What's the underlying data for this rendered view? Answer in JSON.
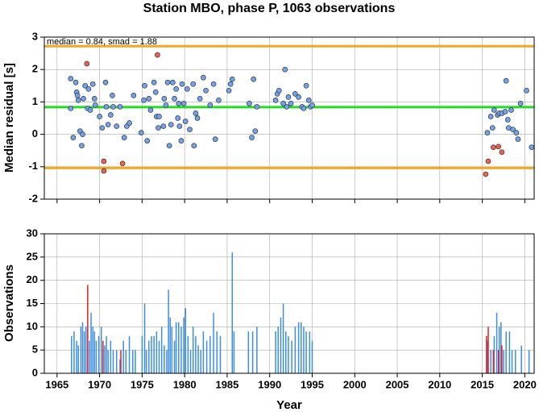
{
  "chart_data": [
    {
      "type": "scatter",
      "title": "Station MBO, phase P, 1063 observations",
      "ylabel": "Median residual [s]",
      "annotation": "median = 0.84, smad = 1.88",
      "xlim": [
        1963.5,
        2021.1
      ],
      "ylim": [
        -2,
        3
      ],
      "yticks": [
        -2,
        -1,
        0,
        1,
        2,
        3
      ],
      "grid": true,
      "hlines": [
        {
          "value": 2.72,
          "color": "#f5a623"
        },
        {
          "value": 0.84,
          "color": "#22dd22"
        },
        {
          "value": -1.04,
          "color": "#f5a623"
        }
      ],
      "series": [
        {
          "color": "#6fa3ef",
          "x": [
            1966.6,
            1966.6,
            1966.9,
            1967.2,
            1967.3,
            1967.4,
            1967.5,
            1967.7,
            1967.9,
            1968.0,
            1968.1,
            1968.3,
            1968.6,
            1968.7,
            1968.9,
            1969.2,
            1969.4,
            1969.5,
            1970.0,
            1970.3,
            1970.7,
            1970.8,
            1971.0,
            1971.3,
            1971.5,
            1971.6,
            1972.0,
            1972.4,
            1972.9,
            1973.2,
            1973.5,
            1974.0,
            1974.9,
            1975.2,
            1975.3,
            1975.6,
            1975.8,
            1976.0,
            1976.4,
            1976.6,
            1976.7,
            1976.9,
            1977.0,
            1977.5,
            1977.6,
            1977.8,
            1978.0,
            1978.2,
            1978.4,
            1978.6,
            1978.8,
            1979.0,
            1979.2,
            1979.3,
            1979.4,
            1979.6,
            1979.7,
            1979.9,
            1980.1,
            1980.3,
            1980.6,
            1981.0,
            1981.1,
            1981.3,
            1981.5,
            1981.8,
            1982.2,
            1982.5,
            1983.0,
            1983.4,
            1983.6,
            1984.0,
            1985.2,
            1985.4,
            1985.6,
            1987.6,
            1987.9,
            1988.1,
            1988.3,
            1988.5,
            1990.7,
            1990.9,
            1991.1,
            1991.6,
            1991.8,
            1992.0,
            1992.2,
            1992.5,
            1993.0,
            1993.4,
            1993.8,
            1994.0,
            1994.3,
            1994.6,
            1994.8,
            1995.0,
            2015.6,
            2016.0,
            2016.2,
            2016.4,
            2016.8,
            2017.0,
            2017.3,
            2017.7,
            2017.8,
            2018.0,
            2018.1,
            2018.4,
            2018.6,
            2019.0,
            2019.2,
            2019.5,
            2020.2,
            2020.8
          ],
          "values": [
            1.72,
            0.8,
            -0.1,
            1.6,
            1.3,
            1.2,
            1.05,
            0.1,
            -0.35,
            0.0,
            1.1,
            1.5,
            0.8,
            1.4,
            0.75,
            1.55,
            1.1,
            0.9,
            0.55,
            0.2,
            1.6,
            0.85,
            0.3,
            0.6,
            1.2,
            0.85,
            0.25,
            0.85,
            -0.1,
            0.25,
            0.35,
            1.2,
            0.05,
            1.05,
            1.5,
            -0.2,
            1.1,
            0.75,
            1.6,
            1.3,
            0.55,
            0.2,
            0.55,
            0.25,
            1.1,
            0.9,
            1.6,
            -0.35,
            0.3,
            1.6,
            1.1,
            1.4,
            0.5,
            0.95,
            0.25,
            -0.2,
            1.55,
            0.95,
            0.4,
            1.4,
            0.15,
            1.55,
            -0.35,
            0.65,
            0.5,
            1.1,
            1.75,
            1.35,
            0.9,
            1.55,
            -0.15,
            1.05,
            1.35,
            1.55,
            1.7,
            0.95,
            -0.1,
            1.7,
            0.1,
            0.85,
            1.05,
            1.25,
            1.35,
            0.95,
            2.0,
            0.85,
            1.15,
            0.95,
            1.25,
            1.15,
            0.85,
            0.8,
            1.5,
            1.05,
            0.85,
            0.9,
            0.05,
            0.55,
            0.2,
            0.75,
            0.6,
            0.65,
            0.65,
            0.7,
            1.65,
            0.45,
            0.2,
            0.75,
            0.15,
            0.05,
            -0.15,
            0.95,
            1.35,
            -0.4
          ]
        },
        {
          "color": "#f06050",
          "x": [
            1968.5,
            1970.5,
            1970.5,
            1972.7,
            1976.8,
            2015.4,
            2015.7,
            2016.3,
            2016.9,
            2017.3
          ],
          "values": [
            2.18,
            -0.83,
            -1.13,
            -0.9,
            2.45,
            -1.23,
            -0.83,
            -0.4,
            -0.38,
            -0.55
          ]
        }
      ]
    },
    {
      "type": "bar",
      "ylabel": "Observations",
      "xlabel": "Year",
      "xlim": [
        1963.5,
        2021.1
      ],
      "xticks": [
        1965,
        1970,
        1975,
        1980,
        1985,
        1990,
        1995,
        2000,
        2005,
        2010,
        2015,
        2020
      ],
      "ylim": [
        0,
        30
      ],
      "yticks": [
        0,
        5,
        10,
        15,
        20,
        25,
        30
      ],
      "grid": true,
      "series": [
        {
          "color": "#3d8ee0",
          "x": [
            1966.7,
            1967.0,
            1967.3,
            1967.5,
            1967.8,
            1968.0,
            1968.2,
            1968.4,
            1968.8,
            1969.0,
            1969.2,
            1969.4,
            1969.6,
            1969.9,
            1970.2,
            1970.4,
            1970.6,
            1970.8,
            1971.0,
            1971.3,
            1971.6,
            1972.0,
            1972.4,
            1972.8,
            1973.1,
            1973.5,
            1973.9,
            1974.2,
            1975.0,
            1975.3,
            1975.5,
            1975.8,
            1976.1,
            1976.4,
            1976.7,
            1977.0,
            1977.3,
            1977.6,
            1977.9,
            1978.1,
            1978.3,
            1978.5,
            1978.8,
            1979.0,
            1979.3,
            1979.6,
            1979.9,
            1980.1,
            1980.4,
            1980.7,
            1981.0,
            1981.3,
            1981.6,
            1981.9,
            1982.2,
            1982.6,
            1983.0,
            1983.4,
            1983.8,
            1984.2,
            1985.6,
            1985.8,
            1987.5,
            1988.0,
            1988.5,
            1990.7,
            1991.0,
            1991.3,
            1991.6,
            1991.9,
            1992.2,
            1992.6,
            1993.0,
            1993.4,
            1993.7,
            1994.0,
            1994.3,
            1994.7,
            1995.0,
            2015.6,
            2016.0,
            2016.4,
            2016.7,
            2017.0,
            2017.2,
            2017.5,
            2017.8,
            2018.2,
            2018.5,
            2018.9,
            2019.6,
            2020.5
          ],
          "values": [
            8,
            9,
            7,
            6,
            10,
            11,
            9,
            10,
            7,
            13,
            10,
            9,
            7,
            8,
            10,
            5,
            6,
            8,
            5,
            7,
            5,
            5,
            3,
            7,
            5,
            8,
            5,
            5,
            8,
            15,
            5,
            7,
            8,
            8,
            9,
            7,
            10,
            6,
            5,
            18,
            12,
            10,
            7,
            11,
            11,
            10,
            12,
            14,
            8,
            5,
            10,
            8,
            6,
            5,
            9,
            7,
            8,
            13,
            9,
            8,
            26,
            9,
            9,
            9,
            10,
            9,
            10,
            12,
            15,
            9,
            8,
            7,
            10,
            11,
            11,
            10,
            9,
            9,
            7,
            7,
            5,
            8,
            13,
            10,
            11,
            5,
            9,
            9,
            5,
            5,
            6,
            5
          ]
        },
        {
          "color": "#e02020",
          "x": [
            1968.6,
            1970.4,
            1972.5,
            2015.5,
            2015.7,
            2016.3,
            2016.9,
            2017.3
          ],
          "values": [
            19,
            7,
            5,
            8,
            10,
            5,
            5,
            6
          ]
        }
      ]
    }
  ]
}
